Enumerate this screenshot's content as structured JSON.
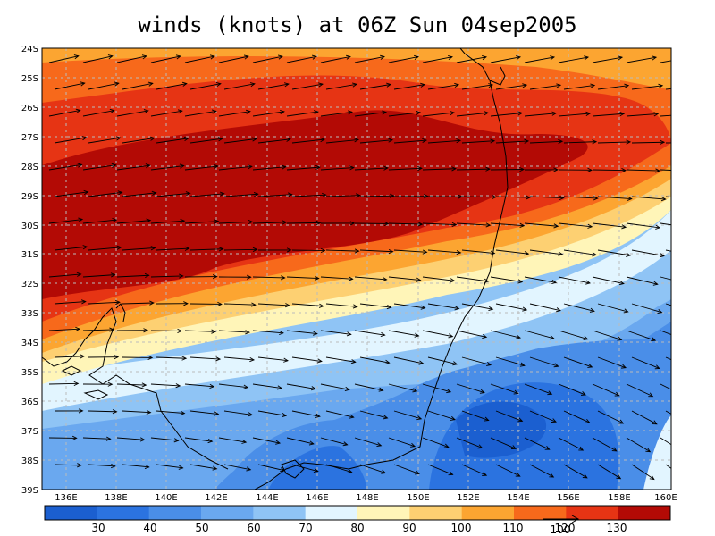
{
  "title": "winds (knots) at 06Z Sun 04sep2005",
  "map": {
    "lon_labels": [
      "136E",
      "138E",
      "140E",
      "142E",
      "144E",
      "146E",
      "148E",
      "150E",
      "152E",
      "154E",
      "156E",
      "158E",
      "160E"
    ],
    "lat_labels": [
      "24S",
      "25S",
      "26S",
      "27S",
      "28S",
      "29S",
      "30S",
      "31S",
      "32S",
      "33S",
      "34S",
      "35S",
      "36S",
      "37S",
      "38S",
      "39S"
    ],
    "lon_range": [
      135,
      160
    ],
    "lat_range": [
      -39,
      -24
    ],
    "grid": true
  },
  "colorbar": {
    "levels": [
      "30",
      "40",
      "50",
      "60",
      "70",
      "80",
      "90",
      "100",
      "110",
      "120",
      "130"
    ],
    "colors": [
      "#1b5fd0",
      "#2b73e0",
      "#4a8ee8",
      "#6aa8ef",
      "#8fc4f5",
      "#e2f5ff",
      "#fff5b8",
      "#fdd072",
      "#fca531",
      "#f7691b",
      "#e63414",
      "#b30a05"
    ]
  },
  "vector_reference": {
    "label": "100"
  }
}
